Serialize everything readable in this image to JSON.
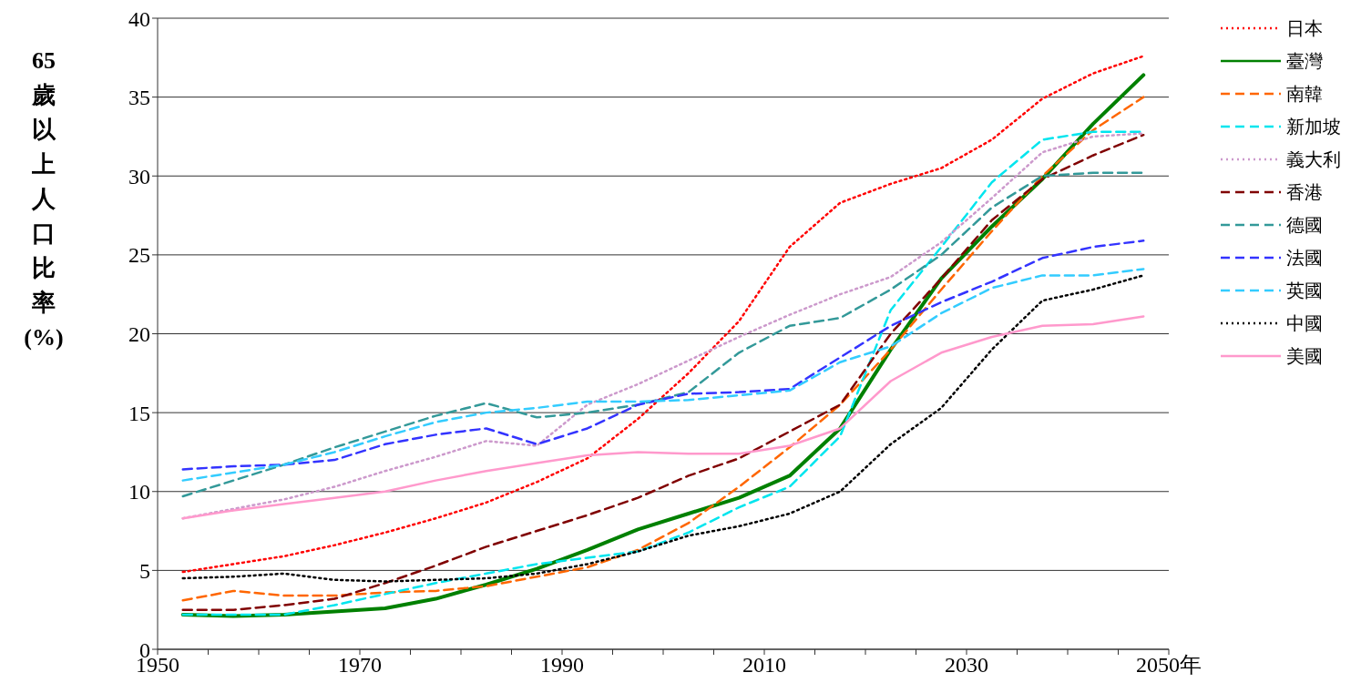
{
  "chart_data": {
    "type": "line",
    "ylabel": "65歲以上人口比率(%)",
    "x": [
      1952.5,
      1957.5,
      1962.5,
      1967.5,
      1972.5,
      1977.5,
      1982.5,
      1987.5,
      1992.5,
      1997.5,
      2002.5,
      2007.5,
      2012.5,
      2017.5,
      2022.5,
      2027.5,
      2032.5,
      2037.5,
      2042.5,
      2047.5
    ],
    "xlim": [
      1950,
      2050
    ],
    "xticks": [
      1950,
      {
        "value": 1955,
        "label": null
      },
      1970,
      {
        "value": 1960,
        "label": null
      },
      {
        "value": 1965,
        "label": null
      },
      {
        "value": 1975,
        "label": null
      },
      {
        "value": 1980,
        "label": null
      },
      {
        "value": 1985,
        "label": null
      },
      1990,
      {
        "value": 1995,
        "label": null
      },
      {
        "value": 2000,
        "label": null
      },
      {
        "value": 2005,
        "label": null
      },
      2010,
      {
        "value": 2015,
        "label": null
      },
      {
        "value": 2020,
        "label": null
      },
      {
        "value": 2025,
        "label": null
      },
      2030,
      {
        "value": 2035,
        "label": null
      },
      {
        "value": 2040,
        "label": null
      },
      {
        "value": 2045,
        "label": null
      },
      {
        "value": 2050,
        "label": "2050年"
      }
    ],
    "ylim": [
      0,
      40
    ],
    "yticks": [
      0,
      5,
      10,
      15,
      20,
      25,
      30,
      35,
      40
    ],
    "grid": "y",
    "legend": "right",
    "marker": "none",
    "series": [
      {
        "name": "日本",
        "color": "#ff0000",
        "line_style": "dotted",
        "values": [
          4.9,
          5.4,
          5.9,
          6.6,
          7.4,
          8.3,
          9.3,
          10.6,
          12.1,
          14.6,
          17.5,
          20.8,
          25.5,
          28.3,
          29.5,
          30.5,
          32.3,
          34.9,
          36.5,
          37.6
        ]
      },
      {
        "name": "臺灣",
        "color": "#008000",
        "line_style": "solid",
        "values": [
          2.2,
          2.1,
          2.2,
          2.4,
          2.6,
          3.2,
          4.1,
          5.1,
          6.3,
          7.6,
          8.6,
          9.6,
          11.0,
          14.0,
          19.0,
          23.5,
          26.8,
          29.8,
          33.3,
          36.4
        ]
      },
      {
        "name": "南韓",
        "color": "#ff6600",
        "line_style": "dashed",
        "values": [
          3.1,
          3.7,
          3.4,
          3.4,
          3.6,
          3.7,
          4.0,
          4.6,
          5.2,
          6.3,
          8.0,
          10.3,
          12.8,
          15.5,
          19.0,
          22.8,
          26.5,
          30.0,
          32.9,
          35.0
        ]
      },
      {
        "name": "新加坡",
        "color": "#00e5ee",
        "line_style": "dashed",
        "values": [
          2.2,
          2.2,
          2.2,
          2.8,
          3.5,
          4.2,
          4.8,
          5.4,
          5.8,
          6.2,
          7.4,
          9.0,
          10.3,
          13.5,
          21.5,
          25.5,
          29.6,
          32.3,
          32.8,
          32.8
        ]
      },
      {
        "name": "義大利",
        "color": "#cc99cc",
        "line_style": "dotted",
        "values": [
          8.3,
          8.9,
          9.5,
          10.3,
          11.3,
          12.2,
          13.2,
          12.9,
          15.5,
          16.8,
          18.3,
          19.8,
          21.2,
          22.5,
          23.6,
          25.8,
          28.6,
          31.5,
          32.5,
          32.7
        ]
      },
      {
        "name": "香港",
        "color": "#800000",
        "line_style": "dashed",
        "values": [
          2.5,
          2.5,
          2.8,
          3.2,
          4.2,
          5.3,
          6.5,
          7.5,
          8.5,
          9.6,
          11.0,
          12.1,
          13.8,
          15.5,
          20.0,
          23.5,
          27.2,
          29.8,
          31.3,
          32.6
        ]
      },
      {
        "name": "德國",
        "color": "#339999",
        "line_style": "dashed",
        "values": [
          9.7,
          10.7,
          11.7,
          12.8,
          13.8,
          14.8,
          15.6,
          14.7,
          15.0,
          15.5,
          16.3,
          18.8,
          20.5,
          21.0,
          22.8,
          25.0,
          28.0,
          30.0,
          30.2,
          30.2
        ]
      },
      {
        "name": "法國",
        "color": "#3333ff",
        "line_style": "dashed",
        "values": [
          11.4,
          11.6,
          11.7,
          12.0,
          13.0,
          13.6,
          14.0,
          13.0,
          14.0,
          15.5,
          16.2,
          16.3,
          16.5,
          18.5,
          20.5,
          22.0,
          23.3,
          24.8,
          25.5,
          25.9
        ]
      },
      {
        "name": "英國",
        "color": "#33ccff",
        "line_style": "dashed",
        "values": [
          10.7,
          11.2,
          11.7,
          12.5,
          13.5,
          14.4,
          15.0,
          15.3,
          15.7,
          15.7,
          15.8,
          16.1,
          16.4,
          18.2,
          19.2,
          21.3,
          22.9,
          23.7,
          23.7,
          24.1
        ]
      },
      {
        "name": "中國",
        "color": "#000000",
        "line_style": "dotted",
        "values": [
          4.5,
          4.6,
          4.8,
          4.4,
          4.3,
          4.4,
          4.5,
          4.8,
          5.4,
          6.2,
          7.2,
          7.8,
          8.6,
          10.0,
          13.0,
          15.3,
          19.0,
          22.1,
          22.8,
          23.7
        ]
      },
      {
        "name": "美國",
        "color": "#ff99cc",
        "line_style": "solid",
        "values": [
          8.3,
          8.8,
          9.2,
          9.6,
          10.0,
          10.7,
          11.3,
          11.8,
          12.3,
          12.5,
          12.4,
          12.4,
          12.9,
          14.0,
          17.0,
          18.8,
          19.8,
          20.5,
          20.6,
          21.1
        ]
      }
    ]
  }
}
